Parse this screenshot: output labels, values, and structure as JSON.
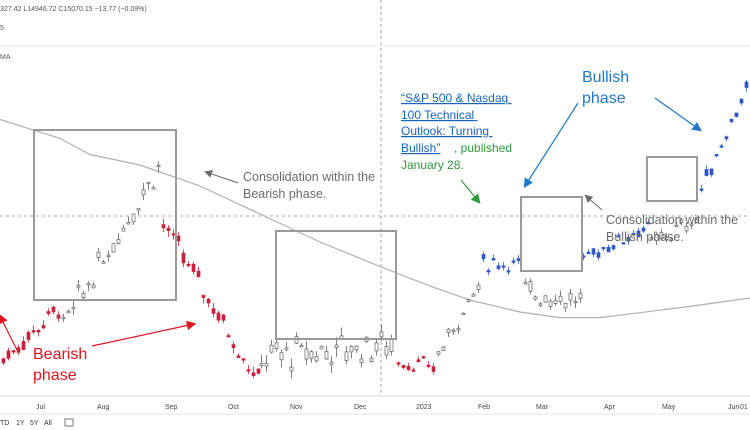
{
  "legend": {
    "ohlc_text": "327.42  L14946.72  C15070.15  −13.77 (−0.09%)",
    "row2": "5",
    "row3": "MA"
  },
  "range_buttons": [
    "TD",
    "1Y",
    "5Y",
    "All"
  ],
  "right_edge_label": "01",
  "colors": {
    "bear": "#c8223a",
    "bull": "#2e58c8",
    "neutral_outline": "#606060",
    "box": "#9a9a9a",
    "ma": "#b0b0b0"
  },
  "annotations": {
    "bearish_phase": [
      "Bearish",
      "phase"
    ],
    "bullish_phase": [
      "Bullish",
      "phase"
    ],
    "consolidation_bearish": [
      "Consolidation within the",
      "Bearish phase."
    ],
    "consolidation_bullish": [
      "Consolidation within the",
      "Bullish phase."
    ],
    "article_title": [
      "“S&P 500 & Nasdaq",
      "100 Technical",
      "Outlook: Turning",
      "Bullish”"
    ],
    "article_published": [
      ", published",
      "January 28."
    ]
  },
  "chart_data": {
    "type": "candlestick",
    "title": "",
    "series_name": "",
    "moving_average": "MA",
    "x_tick_labels": [
      "Jul",
      "Aug",
      "Sep",
      "Oct",
      "Nov",
      "Dec",
      "2023",
      "Feb",
      "Mar",
      "Apr",
      "May",
      "Jun"
    ],
    "ylim": [
      10500,
      15500
    ],
    "grid": false,
    "ma_points": [
      [
        0,
        14450
      ],
      [
        60,
        14180
      ],
      [
        90,
        13950
      ],
      [
        140,
        13800
      ],
      [
        200,
        13500
      ],
      [
        260,
        13100
      ],
      [
        320,
        12700
      ],
      [
        380,
        12350
      ],
      [
        430,
        12070
      ],
      [
        470,
        11870
      ],
      [
        520,
        11700
      ],
      [
        560,
        11620
      ],
      [
        600,
        11620
      ],
      [
        640,
        11690
      ],
      [
        690,
        11780
      ],
      [
        750,
        11900
      ]
    ],
    "candle_segments": [
      {
        "from": 0,
        "to": 60,
        "kind": "bear",
        "start": 11000,
        "end": 11800,
        "amp": 220
      },
      {
        "from": 60,
        "to": 160,
        "kind": "neutral",
        "start": 11450,
        "end": 13850,
        "amp": 300
      },
      {
        "from": 160,
        "to": 258,
        "kind": "bear",
        "start": 13000,
        "end": 10700,
        "amp": 260
      },
      {
        "from": 258,
        "to": 395,
        "kind": "neutral",
        "start": 11050,
        "end": 11250,
        "amp": 380
      },
      {
        "from": 395,
        "to": 435,
        "kind": "bear",
        "start": 11000,
        "end": 10900,
        "amp": 180
      },
      {
        "from": 435,
        "to": 480,
        "kind": "neutral",
        "start": 11050,
        "end": 12150,
        "amp": 200
      },
      {
        "from": 480,
        "to": 522,
        "kind": "bull",
        "start": 12400,
        "end": 12400,
        "amp": 180
      },
      {
        "from": 522,
        "to": 580,
        "kind": "neutral",
        "start": 12000,
        "end": 11850,
        "amp": 260
      },
      {
        "from": 580,
        "to": 648,
        "kind": "bull",
        "start": 12450,
        "end": 12950,
        "amp": 160
      },
      {
        "from": 648,
        "to": 698,
        "kind": "neutral",
        "start": 12650,
        "end": 13050,
        "amp": 200
      },
      {
        "from": 698,
        "to": 750,
        "kind": "bull",
        "start": 13400,
        "end": 15050,
        "amp": 180
      }
    ],
    "legend": "top-left"
  }
}
